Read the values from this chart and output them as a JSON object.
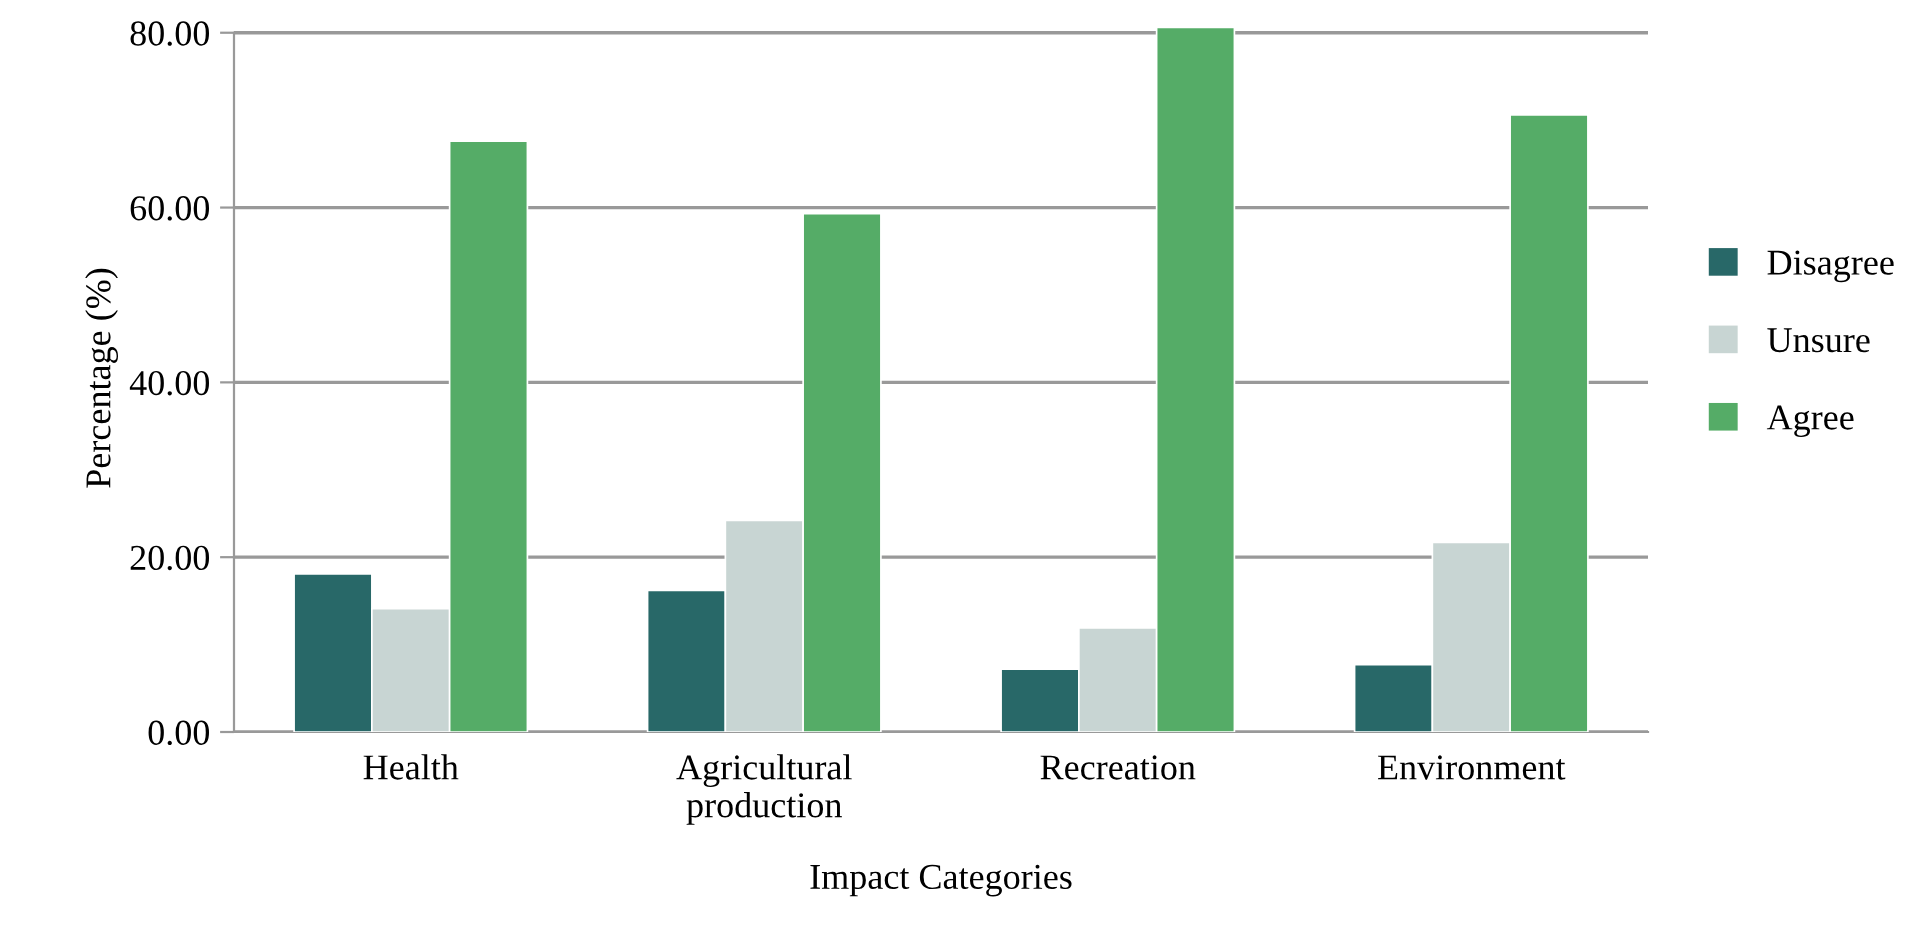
{
  "chart_data": {
    "type": "bar",
    "xlabel": "Impact Categories",
    "ylabel": "Percentage (%)",
    "categories": [
      "Health",
      "Agricultural\nproduction",
      "Recreation",
      "Environment"
    ],
    "series": [
      {
        "name": "Disagree",
        "color": "#286868",
        "values": [
          18.1,
          16.2,
          7.2,
          7.7
        ]
      },
      {
        "name": "Unsure",
        "color": "#c8d5d3",
        "values": [
          14.1,
          24.2,
          11.9,
          21.7
        ]
      },
      {
        "name": "Agree",
        "color": "#55ac67",
        "values": [
          67.6,
          59.3,
          80.6,
          70.6
        ]
      }
    ],
    "ylim": [
      0,
      81
    ],
    "yticks": [
      {
        "value": 0,
        "label": "0.00"
      },
      {
        "value": 20,
        "label": "20.00"
      },
      {
        "value": 40,
        "label": "40.00"
      },
      {
        "value": 60,
        "label": "60.00"
      },
      {
        "value": 80,
        "label": "80.00"
      }
    ],
    "grid": "y",
    "legend": "right"
  }
}
